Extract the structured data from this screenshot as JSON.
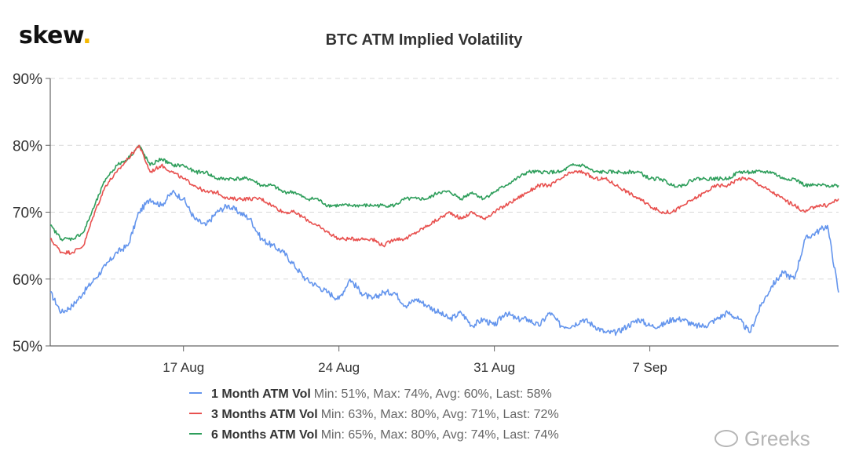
{
  "brand": {
    "text": "skew",
    "dot": "."
  },
  "watermark": {
    "icon": "wechat-icon",
    "text": "Greeks"
  },
  "chart_data": {
    "type": "line",
    "title": "BTC ATM Implied Volatility",
    "xlabel": "",
    "ylabel": "",
    "y_unit": "%",
    "ylim": [
      50,
      90
    ],
    "yticks": [
      50,
      60,
      70,
      80,
      90
    ],
    "ytick_labels": [
      "50%",
      "60%",
      "70%",
      "80%",
      "90%"
    ],
    "xlim": [
      11.0,
      46.5
    ],
    "xticks": [
      17,
      24,
      31,
      38
    ],
    "xtick_labels": [
      "17 Aug",
      "24 Aug",
      "31 Aug",
      "7 Sep"
    ],
    "x_unit_note": "day index counted from 1 Aug",
    "grid": "horizontal dashed",
    "legend_position": "bottom",
    "x": [
      11,
      11.5,
      12,
      12.5,
      13,
      13.5,
      14,
      14.5,
      15,
      15.5,
      16,
      16.5,
      17,
      17.5,
      18,
      18.5,
      19,
      19.5,
      20,
      20.5,
      21,
      21.5,
      22,
      22.5,
      23,
      23.5,
      24,
      24.5,
      25,
      25.5,
      26,
      26.5,
      27,
      27.5,
      28,
      28.5,
      29,
      29.5,
      30,
      30.5,
      31,
      31.5,
      32,
      32.5,
      33,
      33.5,
      34,
      34.5,
      35,
      35.5,
      36,
      36.5,
      37,
      37.5,
      38,
      38.5,
      39,
      39.5,
      40,
      40.5,
      41,
      41.5,
      42,
      42.5,
      43,
      43.5,
      44,
      44.5,
      45,
      45.5,
      46,
      46.5
    ],
    "series": [
      {
        "name": "1 Month ATM Vol",
        "color": "#6495ed",
        "values": [
          58,
          55,
          56,
          58,
          60,
          62,
          64,
          65,
          70,
          72,
          71,
          73,
          72,
          69,
          68,
          70,
          71,
          70,
          69,
          66,
          65,
          64,
          62,
          60,
          59,
          58,
          57,
          60,
          58,
          57,
          58,
          58,
          56,
          57,
          56,
          55,
          54,
          55,
          53,
          54,
          53,
          55,
          54,
          54,
          53,
          55,
          53,
          53,
          54,
          53,
          52,
          52,
          53,
          54,
          53,
          53,
          54,
          54,
          53,
          53,
          54,
          55,
          54,
          52,
          56,
          59,
          61,
          60,
          66,
          67,
          68,
          58
        ],
        "stats": "Min: 51%, Max: 74%, Avg: 60%, Last: 58%"
      },
      {
        "name": "3 Months ATM Vol",
        "color": "#e8514f",
        "values": [
          66,
          64,
          64,
          65,
          70,
          74,
          76,
          78,
          80,
          76,
          77,
          76,
          75,
          74,
          73,
          73,
          72,
          72,
          72,
          72,
          71,
          70,
          70,
          69,
          68,
          67,
          66,
          66,
          66,
          66,
          65,
          66,
          66,
          67,
          68,
          69,
          70,
          69,
          70,
          69,
          70,
          71,
          72,
          73,
          74,
          74,
          75,
          76,
          76,
          75,
          75,
          74,
          73,
          72,
          71,
          70,
          70,
          71,
          72,
          73,
          74,
          74,
          75,
          75,
          74,
          73,
          72,
          71,
          70,
          71,
          71,
          72
        ],
        "stats": "Min: 63%, Max: 80%, Avg: 71%, Last: 72%"
      },
      {
        "name": "6 Months ATM Vol",
        "color": "#2e9e5b",
        "values": [
          68,
          66,
          66,
          67,
          71,
          75,
          77,
          78,
          80,
          77,
          78,
          77,
          77,
          76,
          76,
          75,
          75,
          75,
          75,
          74,
          74,
          73,
          73,
          72,
          72,
          71,
          71,
          71,
          71,
          71,
          71,
          71,
          72,
          72,
          72,
          73,
          73,
          72,
          73,
          72,
          73,
          74,
          75,
          76,
          76,
          76,
          76,
          77,
          77,
          76,
          76,
          76,
          76,
          76,
          75,
          75,
          74,
          74,
          75,
          75,
          75,
          75,
          76,
          76,
          76,
          76,
          75,
          75,
          74,
          74,
          74,
          74
        ],
        "stats": "Min: 65%, Max: 80%, Avg: 74%, Last: 74%"
      }
    ]
  }
}
